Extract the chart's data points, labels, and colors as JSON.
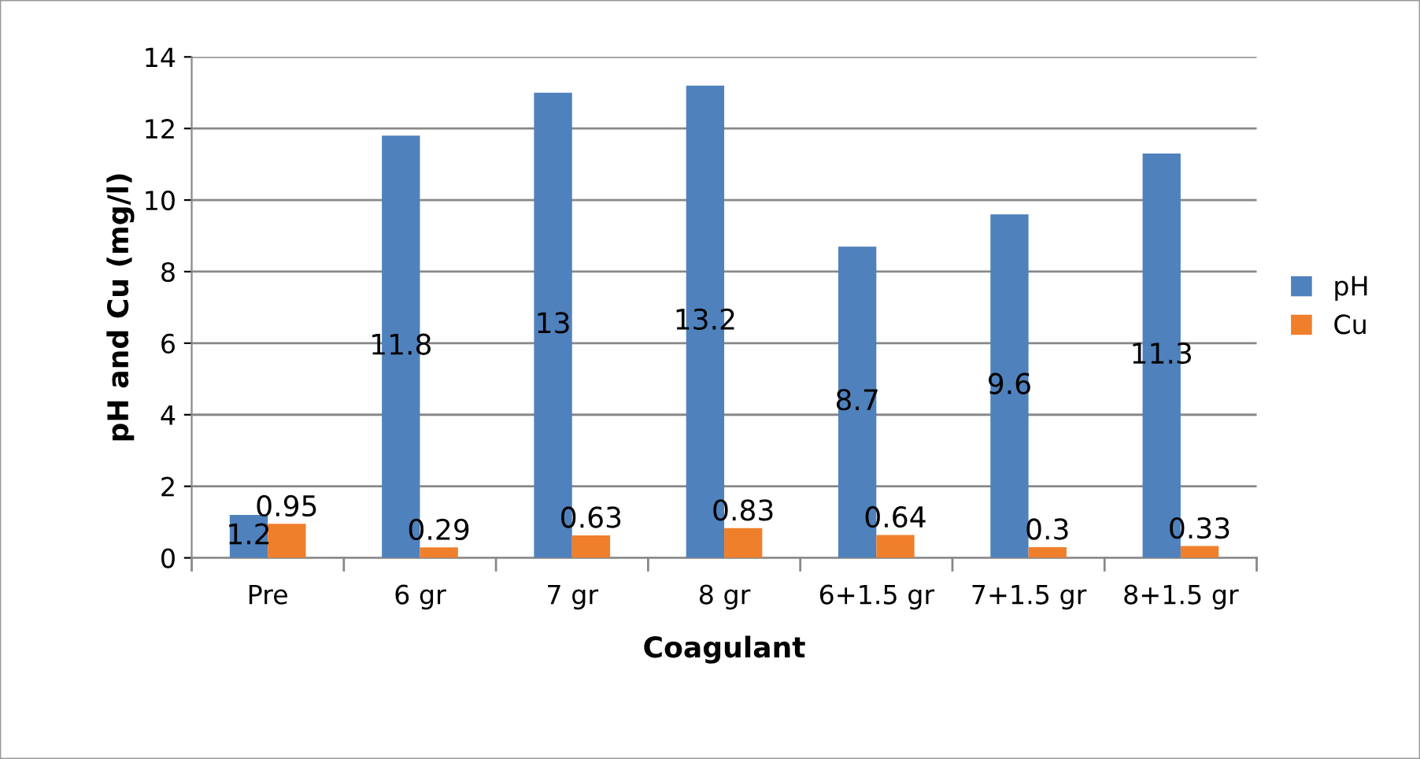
{
  "chart_data": {
    "type": "bar",
    "xlabel": "Coagulant",
    "ylabel": "pH and Cu (mg/l)",
    "categories": [
      "Pre",
      "6 gr",
      "7 gr",
      "8 gr",
      "6+1.5 gr",
      "7+1.5 gr",
      "8+1.5 gr"
    ],
    "series": [
      {
        "name": "pH",
        "color": "#4f81bd",
        "values": [
          1.2,
          11.8,
          13,
          13.2,
          8.7,
          9.6,
          11.3
        ]
      },
      {
        "name": "Cu",
        "color": "#f07f2b",
        "values": [
          0.95,
          0.29,
          0.63,
          0.83,
          0.64,
          0.3,
          0.33
        ]
      }
    ],
    "ylim": [
      0,
      14
    ],
    "yticks": [
      0,
      2,
      4,
      6,
      8,
      10,
      12,
      14
    ],
    "grid": "y",
    "legend": "right",
    "data_labels": true
  }
}
